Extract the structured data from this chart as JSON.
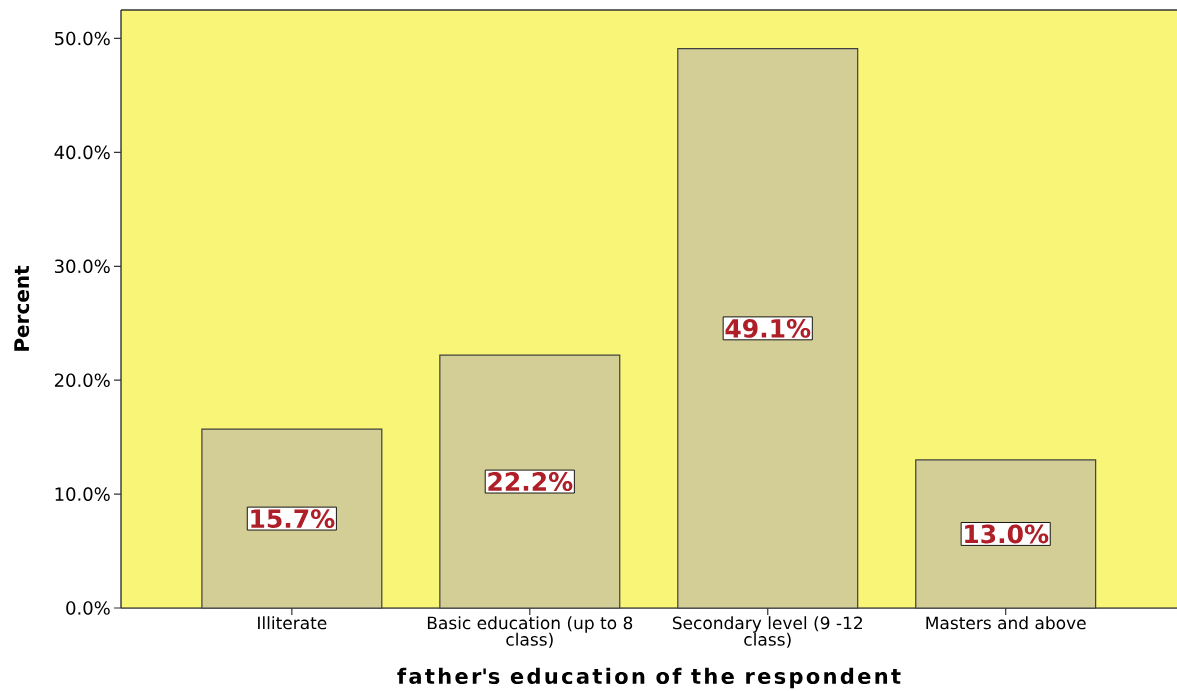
{
  "chart_data": {
    "type": "bar",
    "xlabel": "father's education of the respondent",
    "ylabel": "Percent",
    "categories": [
      "Illiterate",
      "Basic education (up to 8 class)",
      "Secondary level (9 -12 class)",
      "Masters and above"
    ],
    "values": [
      15.7,
      22.2,
      49.1,
      13.0
    ],
    "value_labels": [
      "15.7%",
      "22.2%",
      "49.1%",
      "13.0%"
    ],
    "color": "#d3cd96",
    "ylim": [
      0,
      52.5
    ],
    "yticks": [
      {
        "value": 0,
        "label": "0.0%"
      },
      {
        "value": 10,
        "label": "10.0%"
      },
      {
        "value": 20,
        "label": "20.0%"
      },
      {
        "value": 30,
        "label": "30.0%"
      },
      {
        "value": 40,
        "label": "40.0%"
      },
      {
        "value": 50,
        "label": "50.0%"
      }
    ]
  }
}
